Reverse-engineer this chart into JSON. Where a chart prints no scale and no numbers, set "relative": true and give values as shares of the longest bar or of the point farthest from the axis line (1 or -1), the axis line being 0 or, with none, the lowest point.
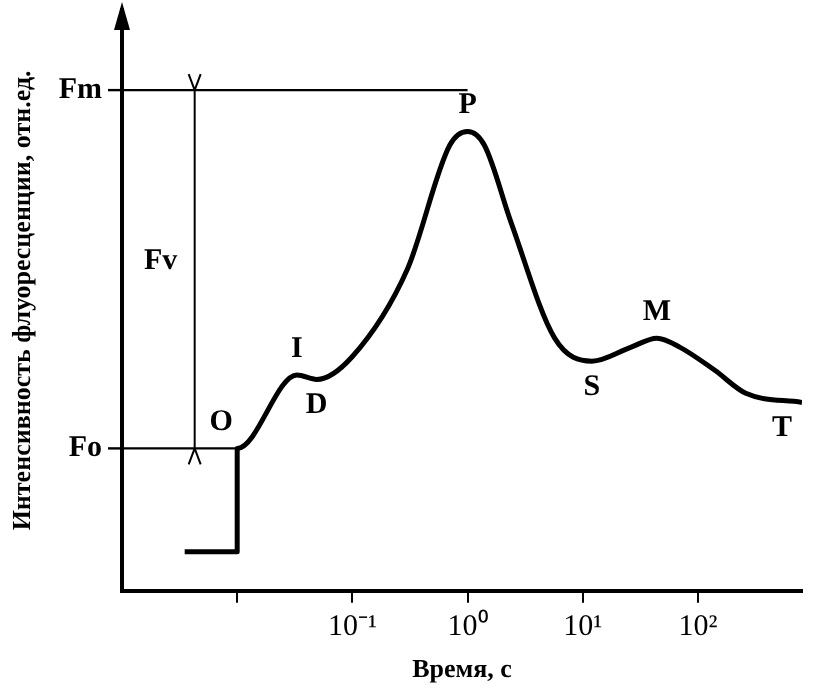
{
  "chart_data": {
    "type": "line",
    "relative": true,
    "log": "x",
    "xlabel": "Время, с",
    "ylabel": "Интенсивность флуоресценции, отн.ед.",
    "x": [
      0.0035,
      0.01,
      0.01,
      0.033,
      0.049,
      0.1,
      0.3,
      0.7,
      1,
      1.4,
      2.4,
      5.7,
      12,
      26,
      44,
      70,
      140,
      260,
      800
    ],
    "values": [
      0.085,
      0.085,
      0.31,
      0.47,
      0.46,
      0.51,
      0.7,
      0.97,
      1,
      0.97,
      0.8,
      0.55,
      0.5,
      0.53,
      0.55,
      0.53,
      0.48,
      0.43,
      0.41
    ],
    "color": "#000000",
    "marker": "none",
    "line_style": "solid",
    "grid": false,
    "legend": false,
    "xlim": [
      0.001,
      800
    ],
    "xticks": [
      {
        "value": 0.01,
        "label": null
      },
      {
        "value": 0.1,
        "label": "10⁻¹"
      },
      {
        "value": 1,
        "label": "10⁰"
      },
      {
        "value": 10,
        "label": "10¹"
      },
      {
        "value": 100,
        "label": "10²"
      }
    ],
    "ref_lines": [
      {
        "axis": "y",
        "value": 0.31,
        "label": "Fo"
      },
      {
        "axis": "y",
        "value": 1.09,
        "label": "Fm"
      }
    ],
    "annotations": [
      {
        "text": "O",
        "x": 0.01,
        "y": 0.31
      },
      {
        "text": "I",
        "x": 0.033,
        "y": 0.47
      },
      {
        "text": "D",
        "x": 0.049,
        "y": 0.46
      },
      {
        "text": "P",
        "x": 1,
        "y": 1
      },
      {
        "text": "S",
        "x": 12,
        "y": 0.5
      },
      {
        "text": "M",
        "x": 44,
        "y": 0.55
      },
      {
        "text": "T",
        "x": 800,
        "y": 0.41
      },
      "Fv"
    ]
  }
}
